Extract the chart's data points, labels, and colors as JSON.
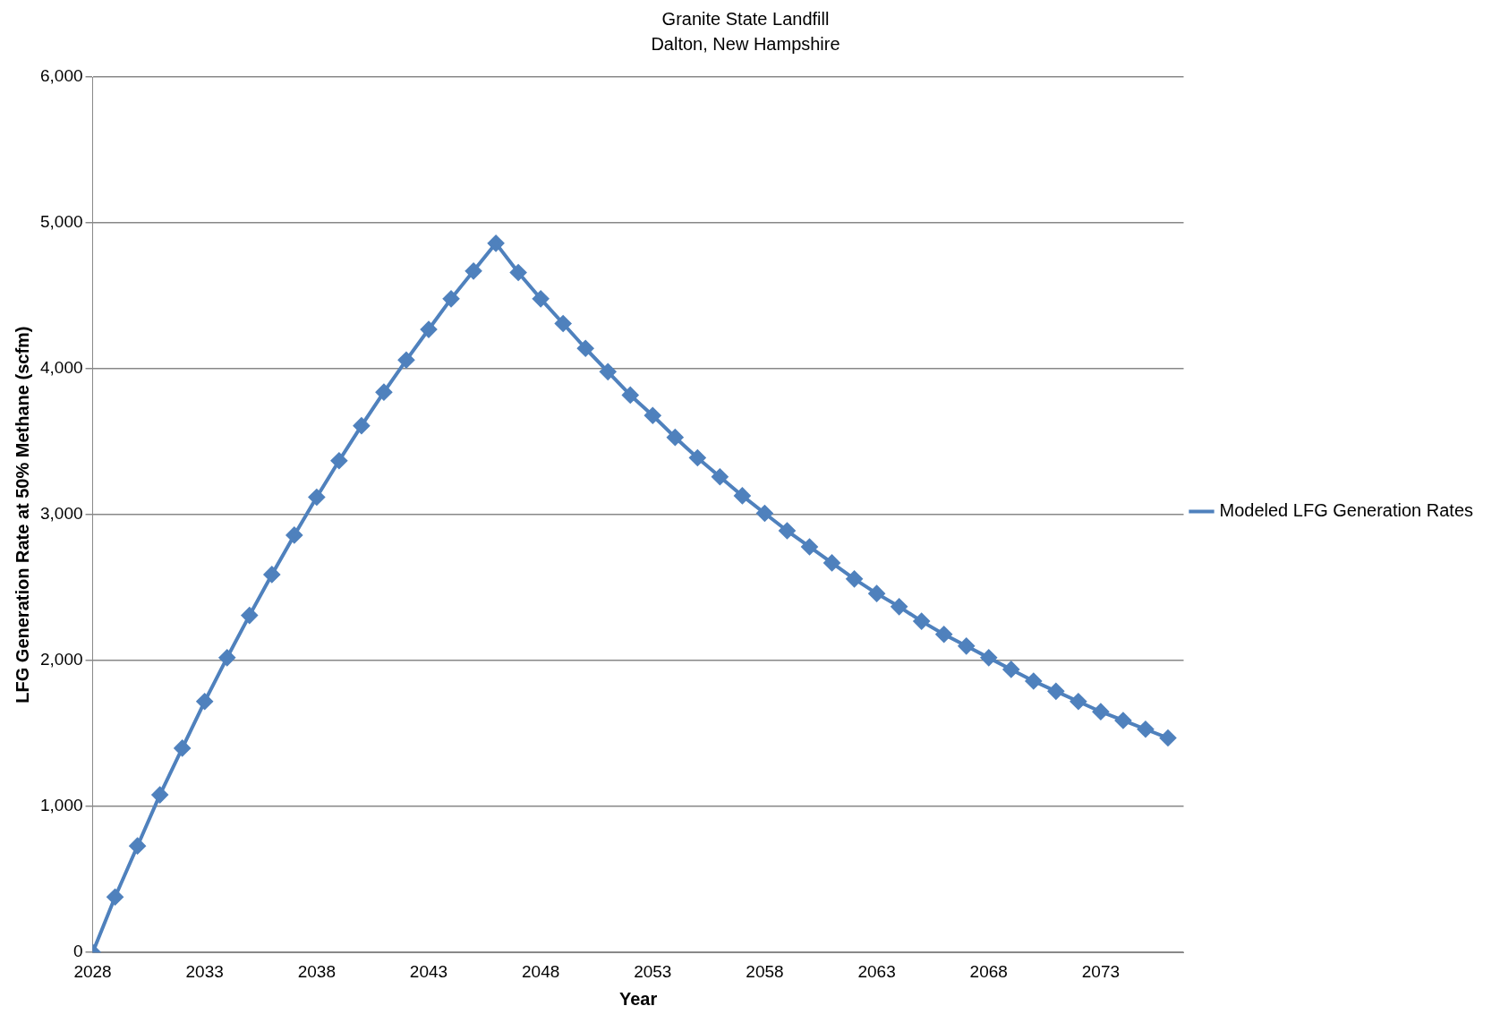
{
  "chart_data": {
    "type": "line",
    "title": "Granite State Landfill",
    "subtitle": "Dalton, New Hampshire",
    "xlabel": "Year",
    "ylabel": "LFG Generation Rate at 50% Methane (scfm)",
    "x": [
      2028,
      2029,
      2030,
      2031,
      2032,
      2033,
      2034,
      2035,
      2036,
      2037,
      2038,
      2039,
      2040,
      2041,
      2042,
      2043,
      2044,
      2045,
      2046,
      2047,
      2048,
      2049,
      2050,
      2051,
      2052,
      2053,
      2054,
      2055,
      2056,
      2057,
      2058,
      2059,
      2060,
      2061,
      2062,
      2063,
      2064,
      2065,
      2066,
      2067,
      2068,
      2069,
      2070,
      2071,
      2072,
      2073,
      2074,
      2075,
      2076
    ],
    "series": [
      {
        "name": "Modeled LFG Generation Rates",
        "color": "#4f81bd",
        "values": [
          0,
          380,
          730,
          1080,
          1400,
          1720,
          2020,
          2310,
          2590,
          2860,
          3120,
          3370,
          3610,
          3840,
          4060,
          4270,
          4480,
          4670,
          4860,
          4660,
          4480,
          4310,
          4140,
          3980,
          3820,
          3680,
          3530,
          3390,
          3260,
          3130,
          3010,
          2890,
          2780,
          2670,
          2560,
          2460,
          2370,
          2270,
          2180,
          2100,
          2020,
          1940,
          1860,
          1790,
          1720,
          1650,
          1590,
          1530,
          1470
        ]
      }
    ],
    "xlim": [
      2028,
      2076.7
    ],
    "xticks": [
      2028,
      2033,
      2038,
      2043,
      2048,
      2053,
      2058,
      2063,
      2068,
      2073
    ],
    "ylim": [
      0,
      6000
    ],
    "yticks": [
      0,
      {
        "value": 1000,
        "label": "1,000"
      },
      {
        "value": 2000,
        "label": "2,000"
      },
      {
        "value": 3000,
        "label": "3,000"
      },
      {
        "value": 4000,
        "label": "4,000"
      },
      {
        "value": 5000,
        "label": "5,000"
      },
      {
        "value": 6000,
        "label": "6,000"
      }
    ],
    "grid": "y",
    "legend": "right",
    "marker": "diamond",
    "line_style": "solid"
  }
}
